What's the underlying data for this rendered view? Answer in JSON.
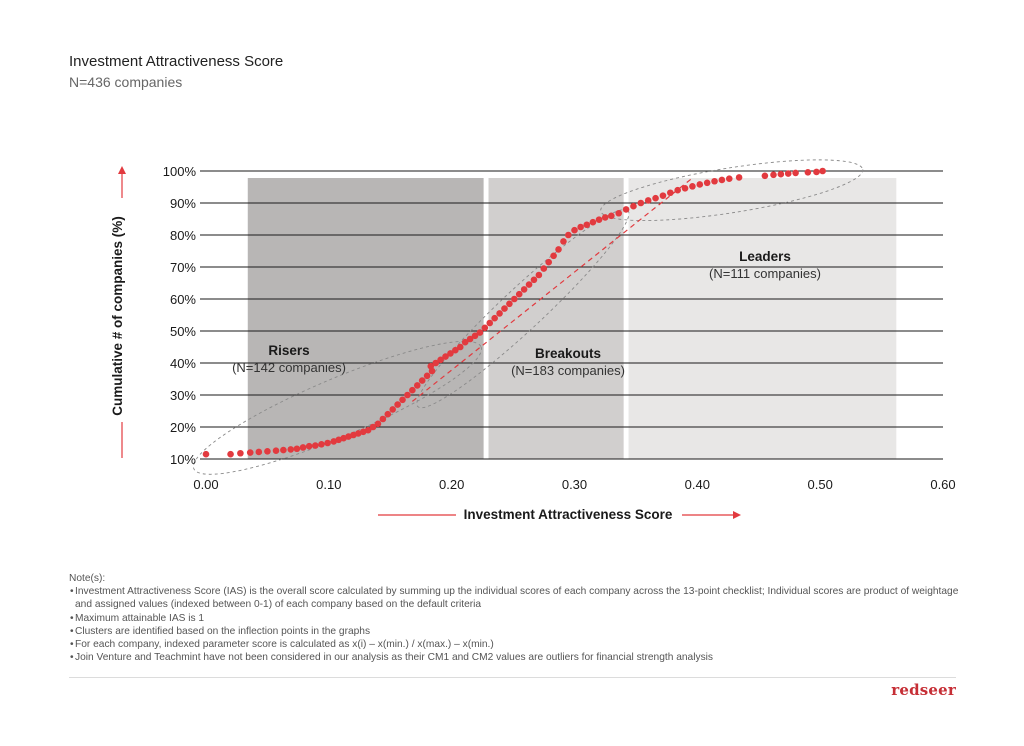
{
  "header": {
    "title": "Investment Attractiveness Score",
    "subtitle": "N=436 companies"
  },
  "chart_data": {
    "type": "scatter",
    "xlabel": "Investment Attractiveness Score",
    "ylabel": "Cumulative # of companies (%)",
    "xlim": [
      0,
      0.6
    ],
    "ylim": [
      10,
      100
    ],
    "x_ticks": [
      "0.00",
      "0.10",
      "0.20",
      "0.30",
      "0.40",
      "0.50",
      "0.60"
    ],
    "y_ticks": [
      "10%",
      "20%",
      "30%",
      "40%",
      "50%",
      "60%",
      "70%",
      "80%",
      "90%",
      "100%"
    ],
    "gridlines": "horizontal",
    "segments": [
      {
        "name": "Risers",
        "label": "(N=142 companies)",
        "x_start": 0.034,
        "x_end": 0.226,
        "color": "#b8b6b5"
      },
      {
        "name": "Breakouts",
        "label": "(N=183 companies)",
        "x_start": 0.23,
        "x_end": 0.34,
        "color": "#d1cfce"
      },
      {
        "name": "Leaders",
        "label": "(N=111 companies)",
        "x_start": 0.344,
        "x_end": 0.562,
        "color": "#e8e7e6"
      }
    ],
    "series": [
      {
        "color": "#e23a3f",
        "points": [
          [
            0.0,
            11.5
          ],
          [
            0.02,
            11.5
          ],
          [
            0.028,
            11.8
          ],
          [
            0.036,
            12.0
          ],
          [
            0.043,
            12.2
          ],
          [
            0.05,
            12.4
          ],
          [
            0.057,
            12.6
          ],
          [
            0.063,
            12.8
          ],
          [
            0.069,
            13.0
          ],
          [
            0.074,
            13.2
          ],
          [
            0.079,
            13.6
          ],
          [
            0.084,
            14.0
          ],
          [
            0.089,
            14.2
          ],
          [
            0.094,
            14.6
          ],
          [
            0.099,
            15.0
          ],
          [
            0.104,
            15.5
          ],
          [
            0.108,
            16.0
          ],
          [
            0.112,
            16.5
          ],
          [
            0.116,
            17.0
          ],
          [
            0.12,
            17.5
          ],
          [
            0.124,
            18.0
          ],
          [
            0.128,
            18.5
          ],
          [
            0.132,
            19.0
          ],
          [
            0.136,
            20.0
          ],
          [
            0.14,
            21.0
          ],
          [
            0.144,
            22.5
          ],
          [
            0.148,
            24.0
          ],
          [
            0.152,
            25.5
          ],
          [
            0.156,
            27.0
          ],
          [
            0.16,
            28.5
          ],
          [
            0.164,
            30.0
          ],
          [
            0.168,
            31.5
          ],
          [
            0.172,
            33.0
          ],
          [
            0.176,
            34.5
          ],
          [
            0.18,
            36.0
          ],
          [
            0.184,
            37.5
          ],
          [
            0.183,
            39.0
          ],
          [
            0.187,
            40.0
          ],
          [
            0.191,
            41.0
          ],
          [
            0.195,
            42.0
          ],
          [
            0.199,
            43.0
          ],
          [
            0.203,
            44.0
          ],
          [
            0.207,
            45.0
          ],
          [
            0.211,
            46.5
          ],
          [
            0.215,
            47.5
          ],
          [
            0.219,
            48.5
          ],
          [
            0.223,
            49.5
          ],
          [
            0.227,
            51.0
          ],
          [
            0.231,
            52.5
          ],
          [
            0.235,
            54.0
          ],
          [
            0.239,
            55.5
          ],
          [
            0.243,
            57.0
          ],
          [
            0.247,
            58.5
          ],
          [
            0.251,
            60.0
          ],
          [
            0.255,
            61.5
          ],
          [
            0.259,
            63.0
          ],
          [
            0.263,
            64.5
          ],
          [
            0.267,
            66.0
          ],
          [
            0.271,
            67.5
          ],
          [
            0.275,
            69.5
          ],
          [
            0.279,
            71.5
          ],
          [
            0.283,
            73.5
          ],
          [
            0.287,
            75.5
          ],
          [
            0.291,
            78.0
          ],
          [
            0.295,
            80.0
          ],
          [
            0.3,
            81.5
          ],
          [
            0.305,
            82.5
          ],
          [
            0.31,
            83.2
          ],
          [
            0.315,
            84.0
          ],
          [
            0.32,
            84.8
          ],
          [
            0.325,
            85.5
          ],
          [
            0.33,
            86.0
          ],
          [
            0.336,
            86.8
          ],
          [
            0.342,
            88.0
          ],
          [
            0.348,
            89.0
          ],
          [
            0.354,
            90.0
          ],
          [
            0.36,
            90.8
          ],
          [
            0.366,
            91.5
          ],
          [
            0.372,
            92.3
          ],
          [
            0.378,
            93.2
          ],
          [
            0.384,
            94.0
          ],
          [
            0.39,
            94.6
          ],
          [
            0.396,
            95.2
          ],
          [
            0.402,
            95.8
          ],
          [
            0.408,
            96.3
          ],
          [
            0.414,
            96.8
          ],
          [
            0.42,
            97.2
          ],
          [
            0.426,
            97.6
          ],
          [
            0.434,
            98.0
          ],
          [
            0.455,
            98.5
          ],
          [
            0.462,
            98.8
          ],
          [
            0.468,
            99.0
          ],
          [
            0.474,
            99.2
          ],
          [
            0.48,
            99.4
          ],
          [
            0.49,
            99.6
          ],
          [
            0.497,
            99.7
          ],
          [
            0.502,
            100.0
          ]
        ]
      }
    ],
    "trend_line": [
      [
        0.168,
        28.0
      ],
      [
        0.395,
        97.5
      ]
    ]
  },
  "notes": {
    "heading": "Note(s):",
    "items": [
      "Investment Attractiveness Score (IAS) is the overall score calculated by summing up the individual scores of each company across the 13-point checklist; Individual scores are product of weightage and assigned values (indexed between 0-1) of each company based on the default criteria",
      "Maximum attainable IAS is 1",
      "Clusters are identified based on the inflection points in the graphs",
      "For each company, indexed parameter score is calculated as x(i) – x(min.) / x(max.) – x(min.)",
      "Join Venture and Teachmint have not been considered in our analysis as their CM1 and CM2 values are outliers for financial strength analysis"
    ]
  },
  "brand": {
    "logo_text": "redseer"
  }
}
